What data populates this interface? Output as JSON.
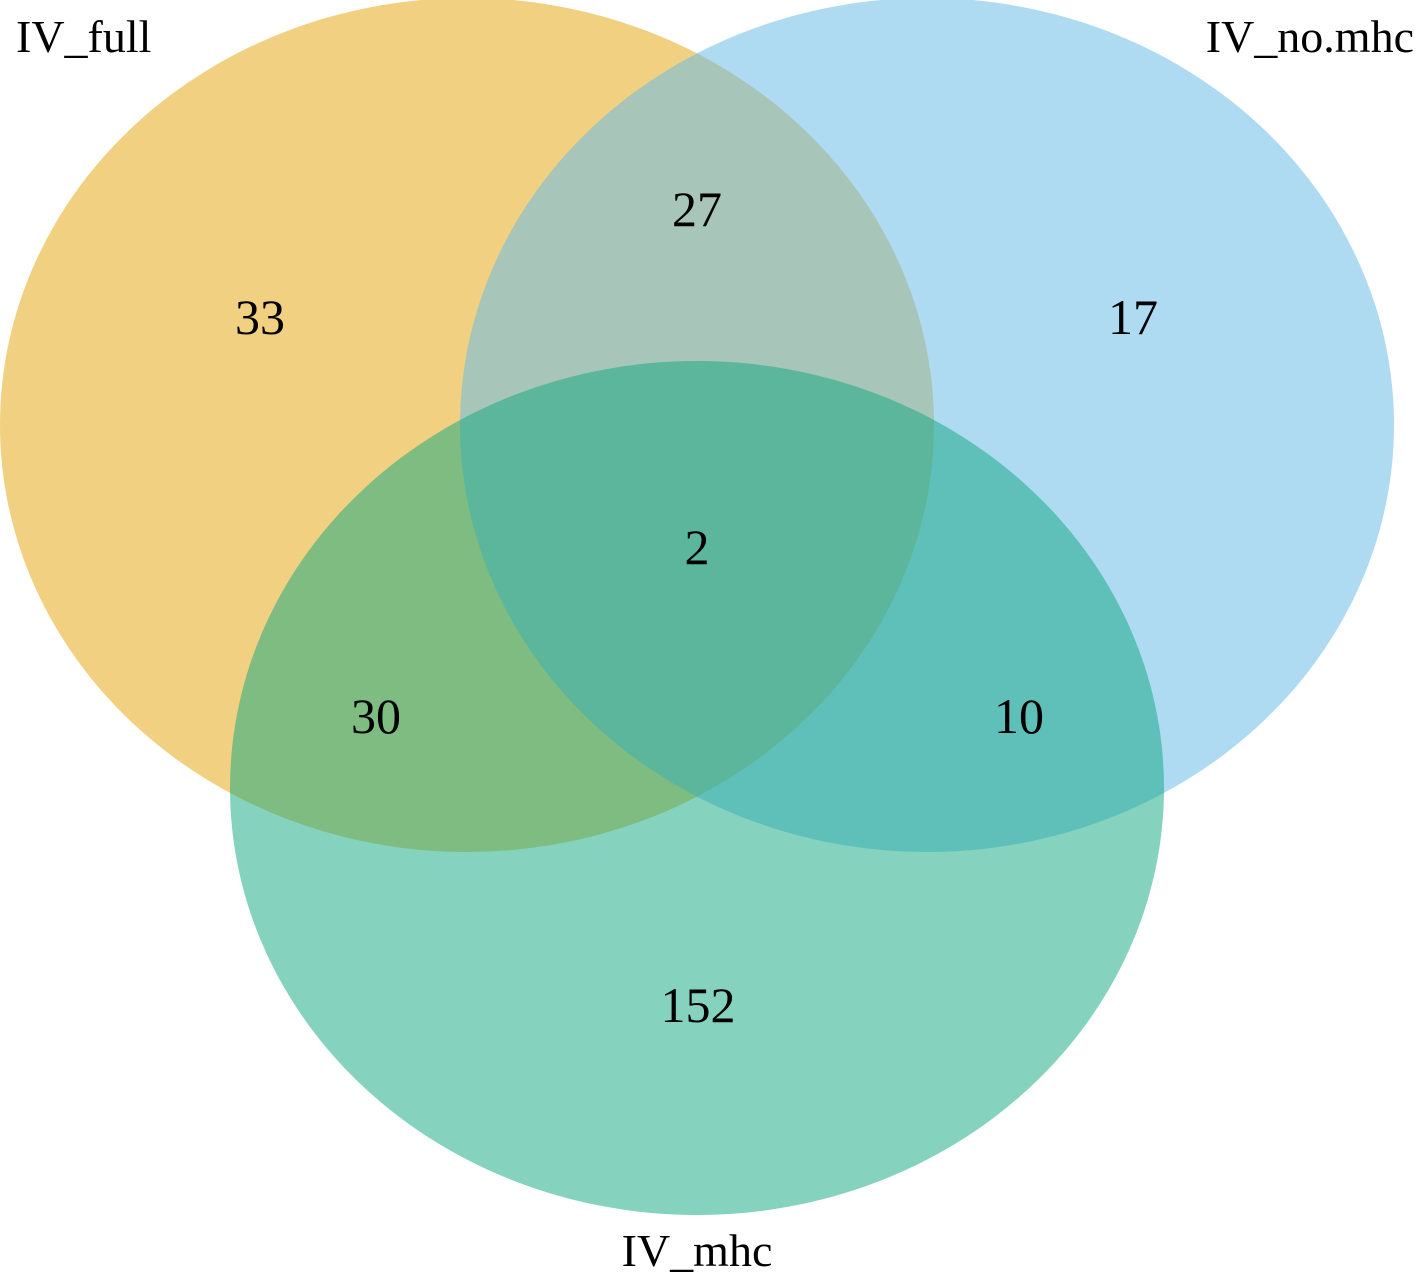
{
  "diagram": {
    "type": "venn-3",
    "sets": [
      {
        "id": "full",
        "name": "IV_full",
        "color": "#e8b32d"
      },
      {
        "id": "nomhc",
        "name": "IV_no.mhc",
        "color": "#6cbce8"
      },
      {
        "id": "mhc",
        "name": "IV_mhc",
        "color": "#15a882"
      }
    ],
    "regions": {
      "full_only": "33",
      "nomhc_only": "17",
      "mhc_only": "152",
      "full_nomhc": "27",
      "full_mhc": "30",
      "nomhc_mhc": "10",
      "all_three": "2"
    }
  }
}
